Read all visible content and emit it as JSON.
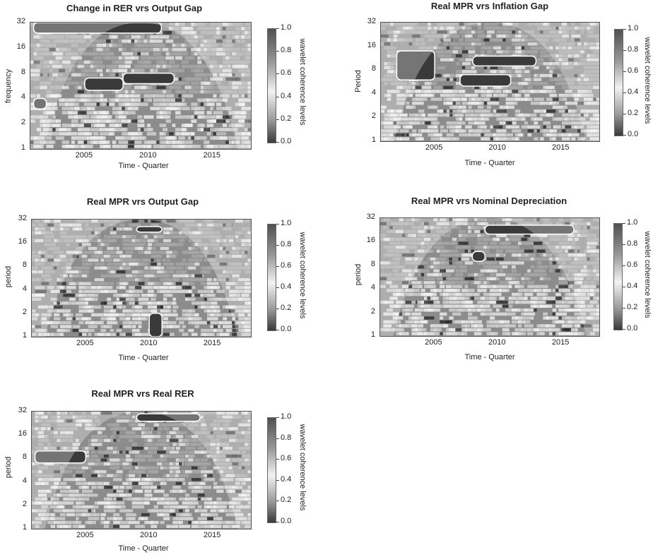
{
  "colorbar": {
    "label": "wavelet coherence levels",
    "ticks": [
      "1.0",
      "0.8",
      "0.6",
      "0.4",
      "0.2",
      "0.0"
    ]
  },
  "panels": [
    {
      "title": "Change in RER vrs Output Gap",
      "ylabel": "frequency",
      "xlabel": "Time - Quarter",
      "yticks": [
        "32",
        "16",
        "8",
        "4",
        "2",
        "1"
      ],
      "xticks": [
        "2005",
        "2010",
        "2015"
      ]
    },
    {
      "title": "Real MPR vrs Inflation Gap",
      "ylabel": "Period",
      "xlabel": "Time - Quarter",
      "yticks": [
        "32",
        "16",
        "8",
        "4",
        "2",
        "1"
      ],
      "xticks": [
        "2005",
        "2010",
        "2015"
      ]
    },
    {
      "title": "Real MPR vrs Output Gap",
      "ylabel": "period",
      "xlabel": "Time - Quarter",
      "yticks": [
        "32",
        "16",
        "8",
        "4",
        "2",
        "1"
      ],
      "xticks": [
        "2005",
        "2010",
        "2015"
      ]
    },
    {
      "title": "Real MPR vrs Nominal Depreciation",
      "ylabel": "period",
      "xlabel": "Time - Quarter",
      "yticks": [
        "32",
        "16",
        "8",
        "4",
        "2",
        "1"
      ],
      "xticks": [
        "2005",
        "2010",
        "2015"
      ]
    },
    {
      "title": "Real MPR vrs Real RER",
      "ylabel": "period",
      "xlabel": "Time - Quarter",
      "yticks": [
        "32",
        "16",
        "8",
        "4",
        "2",
        "1"
      ],
      "xticks": [
        "2005",
        "2010",
        "2015"
      ]
    }
  ],
  "chart_data": [
    {
      "type": "heatmap",
      "title": "Change in RER vrs Output Gap",
      "xlabel": "Time - Quarter",
      "ylabel": "frequency",
      "x_range": [
        2000.75,
        2018
      ],
      "y_scale": "log2",
      "y_range": [
        1,
        32
      ],
      "z_range": [
        0,
        1
      ],
      "x_ticks": [
        2005,
        2010,
        2015
      ],
      "y_ticks": [
        1,
        2,
        4,
        8,
        16,
        32
      ],
      "high_coherence_regions": [
        {
          "x": [
            2001,
            2011
          ],
          "period": [
            24,
            32
          ]
        },
        {
          "x": [
            2008,
            2012
          ],
          "period": [
            6,
            8
          ]
        },
        {
          "x": [
            2005,
            2008
          ],
          "period": [
            5,
            7
          ]
        },
        {
          "x": [
            2001,
            2002
          ],
          "period": [
            3,
            4
          ]
        }
      ]
    },
    {
      "type": "heatmap",
      "title": "Real MPR vrs Inflation Gap",
      "xlabel": "Time - Quarter",
      "ylabel": "Period",
      "x_range": [
        2000.75,
        2018
      ],
      "y_scale": "log2",
      "y_range": [
        1,
        32
      ],
      "z_range": [
        0,
        1
      ],
      "x_ticks": [
        2005,
        2010,
        2015
      ],
      "y_ticks": [
        1,
        2,
        4,
        8,
        16,
        32
      ],
      "high_coherence_regions": [
        {
          "x": [
            2002,
            2005
          ],
          "period": [
            6,
            14
          ]
        },
        {
          "x": [
            2008,
            2013
          ],
          "period": [
            9,
            12
          ]
        },
        {
          "x": [
            2007,
            2011
          ],
          "period": [
            5,
            7
          ]
        }
      ]
    },
    {
      "type": "heatmap",
      "title": "Real MPR vrs Output Gap",
      "xlabel": "Time - Quarter",
      "ylabel": "period",
      "x_range": [
        2000.75,
        2018
      ],
      "y_scale": "log2",
      "y_range": [
        1,
        32
      ],
      "z_range": [
        0,
        1
      ],
      "x_ticks": [
        2005,
        2010,
        2015
      ],
      "y_ticks": [
        1,
        2,
        4,
        8,
        16,
        32
      ],
      "high_coherence_regions": [
        {
          "x": [
            2009,
            2011
          ],
          "period": [
            22,
            26
          ]
        },
        {
          "x": [
            2010,
            2011
          ],
          "period": [
            1,
            2
          ]
        }
      ]
    },
    {
      "type": "heatmap",
      "title": "Real MPR vrs Nominal Depreciation",
      "xlabel": "Time - Quarter",
      "ylabel": "period",
      "x_range": [
        2000.75,
        2018
      ],
      "y_scale": "log2",
      "y_range": [
        1,
        32
      ],
      "z_range": [
        0,
        1
      ],
      "x_ticks": [
        2005,
        2010,
        2015
      ],
      "y_ticks": [
        1,
        2,
        4,
        8,
        16,
        32
      ],
      "high_coherence_regions": [
        {
          "x": [
            2009,
            2016
          ],
          "period": [
            20,
            26
          ]
        },
        {
          "x": [
            2008,
            2009
          ],
          "period": [
            9,
            12
          ]
        }
      ]
    },
    {
      "type": "heatmap",
      "title": "Real MPR vrs Real RER",
      "xlabel": "Time - Quarter",
      "ylabel": "period",
      "x_range": [
        2000.75,
        2018
      ],
      "y_scale": "log2",
      "y_range": [
        1,
        32
      ],
      "z_range": [
        0,
        1
      ],
      "x_ticks": [
        2005,
        2010,
        2015
      ],
      "y_ticks": [
        1,
        2,
        4,
        8,
        16,
        32
      ],
      "high_coherence_regions": [
        {
          "x": [
            2009,
            2014
          ],
          "period": [
            24,
            30
          ]
        },
        {
          "x": [
            2001,
            2005
          ],
          "period": [
            7,
            10
          ]
        }
      ]
    }
  ]
}
